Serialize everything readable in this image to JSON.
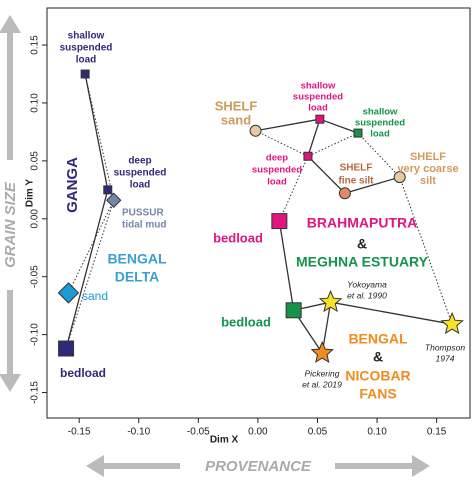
{
  "chart_data": {
    "type": "scatter",
    "xlabel": "Dim X",
    "ylabel": "Dim Y",
    "x_arrow_label": "PROVENANCE",
    "y_arrow_label": "GRAIN SIZE",
    "xlim": [
      -0.177,
      0.178
    ],
    "ylim": [
      -0.172,
      0.182
    ],
    "xticks": [
      -0.15,
      {
        "value": -0.1,
        "label": "-0.10"
      },
      -0.05,
      {
        "value": 0,
        "label": "0.00"
      },
      0.05,
      {
        "value": 0.1,
        "label": "0.10"
      },
      0.15
    ],
    "yticks": [
      -0.15,
      {
        "value": -0.1,
        "label": "-0.10"
      },
      -0.05,
      {
        "value": 0,
        "label": "0.00"
      },
      0.05,
      {
        "value": 0.1,
        "label": "0.10"
      },
      0.15
    ],
    "points": [
      {
        "x": -0.145,
        "y": 0.125,
        "color": "#2e2a7a",
        "marker": "square"
      },
      {
        "x": -0.126,
        "y": 0.025,
        "color": "#2e2a7a",
        "marker": "square"
      },
      {
        "x": -0.121,
        "y": 0.016,
        "color": "#7388a8",
        "marker": "diamond"
      },
      {
        "x": -0.159,
        "y": -0.064,
        "color": "#1a9ad6",
        "marker": "big-diamond"
      },
      {
        "x": -0.161,
        "y": -0.112,
        "color": "#2e2a7a",
        "marker": "big-square"
      },
      {
        "x": -0.002,
        "y": 0.076,
        "color": "#e8c9a0",
        "marker": "circle"
      },
      {
        "x": 0.052,
        "y": 0.086,
        "color": "#e0157f",
        "marker": "square"
      },
      {
        "x": 0.084,
        "y": 0.074,
        "color": "#16924a",
        "marker": "square"
      },
      {
        "x": 0.042,
        "y": 0.054,
        "color": "#e0157f",
        "marker": "square"
      },
      {
        "x": 0.073,
        "y": 0.022,
        "color": "#e08a6a",
        "marker": "circle"
      },
      {
        "x": 0.119,
        "y": 0.036,
        "color": "#e8c9a0",
        "marker": "circle"
      },
      {
        "x": 0.018,
        "y": -0.002,
        "color": "#e0157f",
        "marker": "big-square"
      },
      {
        "x": 0.03,
        "y": -0.079,
        "color": "#16924a",
        "marker": "big-square"
      },
      {
        "x": 0.061,
        "y": -0.072,
        "color": "#f7e225",
        "marker": "star"
      },
      {
        "x": 0.054,
        "y": -0.116,
        "color": "#f08c1e",
        "marker": "star"
      },
      {
        "x": 0.163,
        "y": -0.091,
        "color": "#f7e225",
        "marker": "star"
      }
    ],
    "annotations": [
      {
        "lines": [
          "shallow",
          "suspended",
          "load"
        ],
        "color": "#2e2a7a"
      },
      {
        "lines": [
          "deep",
          "suspended",
          "load"
        ],
        "color": "#2e2a7a"
      },
      {
        "lines": [
          "GANGA"
        ],
        "color": "#2e2a7a"
      },
      {
        "lines": [
          "PUSSUR",
          "tidal mud"
        ],
        "color": "#7388a8"
      },
      {
        "lines": [
          "BENGAL",
          "DELTA"
        ],
        "color": "#3aa0cf"
      },
      {
        "lines": [
          "sand"
        ],
        "color": "#1a9ad6"
      },
      {
        "lines": [
          "bedload"
        ],
        "color": "#2e2a7a"
      },
      {
        "lines": [
          "SHELF",
          "sand"
        ],
        "color": "#d09a5e"
      },
      {
        "lines": [
          "shallow",
          "suspended",
          "load"
        ],
        "color": "#e0157f"
      },
      {
        "lines": [
          "shallow",
          "suspended",
          "load"
        ],
        "color": "#16924a"
      },
      {
        "lines": [
          "deep",
          "suspended",
          "load"
        ],
        "color": "#e0157f"
      },
      {
        "lines": [
          "SHELF",
          "fine silt"
        ],
        "color": "#b5683b"
      },
      {
        "lines": [
          "SHELF",
          "very coarse",
          "silt"
        ],
        "color": "#d09a5e"
      },
      {
        "lines": [
          "bedload"
        ],
        "color": "#e0157f"
      },
      {
        "lines": [
          "BRAHMAPUTRA"
        ],
        "color": "#e0157f"
      },
      {
        "lines": [
          "&"
        ],
        "color": "#222222"
      },
      {
        "lines": [
          "MEGHNA ESTUARY"
        ],
        "color": "#16924a"
      },
      {
        "lines": [
          "bedload"
        ],
        "color": "#16924a"
      },
      {
        "lines": [
          "Yokoyama",
          "et al. 1990"
        ],
        "color": "#222222"
      },
      {
        "lines": [
          "BENGAL"
        ],
        "color": "#f08c1e"
      },
      {
        "lines": [
          "&"
        ],
        "color": "#222222"
      },
      {
        "lines": [
          "NICOBAR",
          "FANS"
        ],
        "color": "#f08c1e"
      },
      {
        "lines": [
          "Thompson",
          "1974"
        ],
        "color": "#222222"
      },
      {
        "lines": [
          "Pickering",
          "et al. 2019"
        ],
        "color": "#222222"
      }
    ]
  }
}
